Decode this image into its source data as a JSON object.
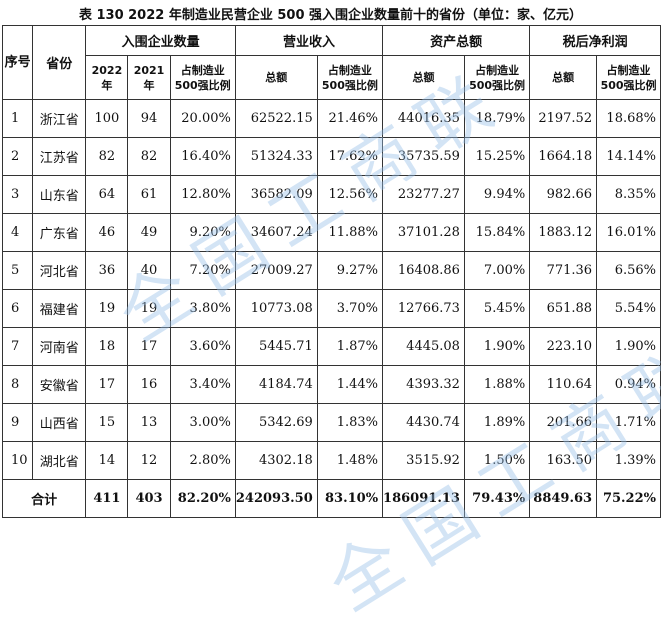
{
  "caption": "表 130   2022 年制造业民营企业 500 强入围企业数量前十的省份（单位：家、亿元）",
  "headers": {
    "seq": "序号",
    "province": "省份",
    "group_count": "入围企业数量",
    "group_revenue": "营业收入",
    "group_assets": "资产总额",
    "group_profit": "税后净利润",
    "y2022": "2022年",
    "y2021": "2021年",
    "share": "占制造业500强比例",
    "total": "总额"
  },
  "rows": [
    {
      "n": "1",
      "prov": "浙江省",
      "c22": "100",
      "c21": "94",
      "cpct": "20.00%",
      "rev": "62522.15",
      "rpct": "21.46%",
      "ast": "44016.35",
      "apct": "18.79%",
      "pro": "2197.52",
      "ppct": "18.68%"
    },
    {
      "n": "2",
      "prov": "江苏省",
      "c22": "82",
      "c21": "82",
      "cpct": "16.40%",
      "rev": "51324.33",
      "rpct": "17.62%",
      "ast": "35735.59",
      "apct": "15.25%",
      "pro": "1664.18",
      "ppct": "14.14%"
    },
    {
      "n": "3",
      "prov": "山东省",
      "c22": "64",
      "c21": "61",
      "cpct": "12.80%",
      "rev": "36582.09",
      "rpct": "12.56%",
      "ast": "23277.27",
      "apct": "9.94%",
      "pro": "982.66",
      "ppct": "8.35%"
    },
    {
      "n": "4",
      "prov": "广东省",
      "c22": "46",
      "c21": "49",
      "cpct": "9.20%",
      "rev": "34607.24",
      "rpct": "11.88%",
      "ast": "37101.28",
      "apct": "15.84%",
      "pro": "1883.12",
      "ppct": "16.01%"
    },
    {
      "n": "5",
      "prov": "河北省",
      "c22": "36",
      "c21": "40",
      "cpct": "7.20%",
      "rev": "27009.27",
      "rpct": "9.27%",
      "ast": "16408.86",
      "apct": "7.00%",
      "pro": "771.36",
      "ppct": "6.56%"
    },
    {
      "n": "6",
      "prov": "福建省",
      "c22": "19",
      "c21": "19",
      "cpct": "3.80%",
      "rev": "10773.08",
      "rpct": "3.70%",
      "ast": "12766.73",
      "apct": "5.45%",
      "pro": "651.88",
      "ppct": "5.54%"
    },
    {
      "n": "7",
      "prov": "河南省",
      "c22": "18",
      "c21": "17",
      "cpct": "3.60%",
      "rev": "5445.71",
      "rpct": "1.87%",
      "ast": "4445.08",
      "apct": "1.90%",
      "pro": "223.10",
      "ppct": "1.90%"
    },
    {
      "n": "8",
      "prov": "安徽省",
      "c22": "17",
      "c21": "16",
      "cpct": "3.40%",
      "rev": "4184.74",
      "rpct": "1.44%",
      "ast": "4393.32",
      "apct": "1.88%",
      "pro": "110.64",
      "ppct": "0.94%"
    },
    {
      "n": "9",
      "prov": "山西省",
      "c22": "15",
      "c21": "13",
      "cpct": "3.00%",
      "rev": "5342.69",
      "rpct": "1.83%",
      "ast": "4430.74",
      "apct": "1.89%",
      "pro": "201.66",
      "ppct": "1.71%"
    },
    {
      "n": "10",
      "prov": "湖北省",
      "c22": "14",
      "c21": "12",
      "cpct": "2.80%",
      "rev": "4302.18",
      "rpct": "1.48%",
      "ast": "3515.92",
      "apct": "1.50%",
      "pro": "163.50",
      "ppct": "1.39%"
    }
  ],
  "total": {
    "label": "合计",
    "c22": "411",
    "c21": "403",
    "cpct": "82.20%",
    "rev": "242093.50",
    "rpct": "83.10%",
    "ast": "186091.13",
    "apct": "79.43%",
    "pro": "8849.63",
    "ppct": "75.22%"
  },
  "watermark": "全国工商联"
}
